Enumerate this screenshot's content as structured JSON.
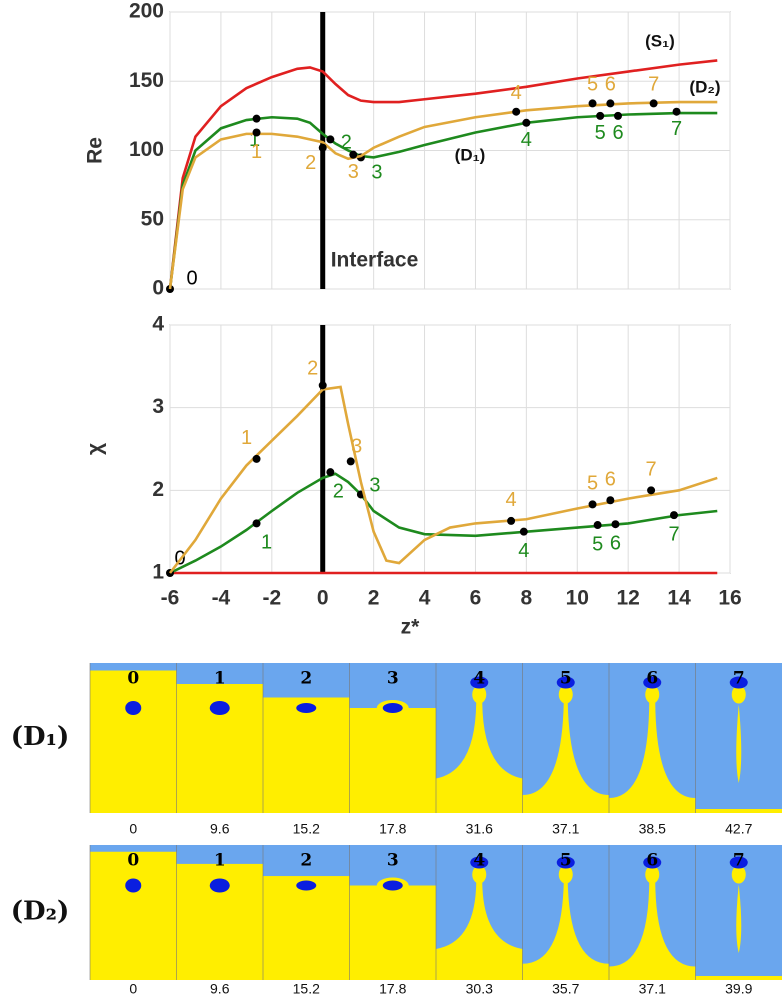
{
  "chart_data": [
    {
      "type": "line",
      "ylabel": "Re",
      "xlim": [
        -6,
        16
      ],
      "ylim": [
        0,
        200
      ],
      "xticks": [
        -6,
        -4,
        -2,
        0,
        2,
        4,
        6,
        8,
        10,
        12,
        14,
        16
      ],
      "yticks": [
        0,
        50,
        100,
        150,
        200
      ],
      "show_xtick_labels": false,
      "grid": true,
      "annotation": {
        "text": "Interface",
        "x": 0
      },
      "series": [
        {
          "name": "(S₁)",
          "color": "#e02020",
          "x": [
            -6,
            -5.5,
            -5,
            -4,
            -3,
            -2,
            -1,
            -0.5,
            0,
            0.5,
            1,
            1.5,
            2,
            3,
            4,
            6,
            8,
            10,
            12,
            14,
            15.5
          ],
          "values": [
            0,
            80,
            110,
            132,
            145,
            153,
            159,
            160,
            157,
            148,
            140,
            136,
            135,
            135,
            137,
            141,
            146,
            152,
            157,
            162,
            165
          ]
        },
        {
          "name": "(D₁)",
          "color": "#1e8a1e",
          "x": [
            -6,
            -5.5,
            -5,
            -4,
            -3,
            -2,
            -1,
            -0.5,
            0,
            0.5,
            1,
            1.5,
            2,
            3,
            4,
            6,
            8,
            10,
            12,
            14,
            15.5
          ],
          "values": [
            0,
            75,
            100,
            116,
            122,
            124,
            123,
            120,
            112,
            105,
            100,
            96,
            95,
            99,
            104,
            113,
            120,
            124,
            126,
            127,
            127
          ],
          "points": {
            "x": [
              -6,
              -2.6,
              0.3,
              1.5,
              8,
              10.9,
              11.6,
              13.9
            ],
            "values": [
              0,
              123,
              108,
              95,
              120,
              125,
              125,
              128
            ],
            "labels": [
              "0",
              "1",
              "2",
              "3",
              "4",
              "5",
              "6",
              "7"
            ]
          }
        },
        {
          "name": "(D₂)",
          "color": "#e0a83a",
          "x": [
            -6,
            -5.5,
            -5,
            -4,
            -3,
            -2,
            -1,
            0,
            0.5,
            1,
            1.5,
            2,
            3,
            4,
            6,
            8,
            10,
            12,
            14,
            15.5
          ],
          "values": [
            0,
            72,
            95,
            108,
            112,
            112,
            110,
            106,
            98,
            94,
            96,
            102,
            110,
            117,
            124,
            129,
            132,
            134,
            135,
            135
          ],
          "points": {
            "x": [
              -2.6,
              0,
              1.2,
              7.6,
              10.6,
              11.3,
              13
            ],
            "values": [
              113,
              102,
              97,
              128,
              134,
              134,
              134
            ],
            "labels": [
              "1",
              "2",
              "3",
              "4",
              "5",
              "6",
              "7"
            ]
          }
        }
      ]
    },
    {
      "type": "line",
      "ylabel": "χ",
      "xlabel": "z*",
      "xlim": [
        -6,
        16
      ],
      "ylim": [
        1,
        4
      ],
      "xticks": [
        -6,
        -4,
        -2,
        0,
        2,
        4,
        6,
        8,
        10,
        12,
        14,
        16
      ],
      "yticks": [
        1,
        2,
        3,
        4
      ],
      "show_xtick_labels": true,
      "grid": true,
      "vline": 0,
      "series": [
        {
          "color": "#e02020",
          "x": [
            -6,
            15.5
          ],
          "values": [
            1,
            1
          ]
        },
        {
          "color": "#1e8a1e",
          "x": [
            -6,
            -5,
            -4,
            -3,
            -2,
            -1,
            0,
            0.5,
            1,
            1.5,
            2,
            3,
            4,
            6,
            8,
            10,
            12,
            14,
            15.5
          ],
          "values": [
            1,
            1.15,
            1.32,
            1.52,
            1.75,
            1.97,
            2.15,
            2.2,
            2.1,
            1.95,
            1.75,
            1.55,
            1.47,
            1.45,
            1.5,
            1.55,
            1.6,
            1.7,
            1.75
          ],
          "points": {
            "x": [
              -6,
              -2.6,
              0.3,
              1.5,
              7.9,
              10.8,
              11.5,
              13.8
            ],
            "values": [
              1,
              1.6,
              2.22,
              1.95,
              1.5,
              1.58,
              1.59,
              1.7
            ],
            "labels": [
              "0",
              "1",
              "2",
              "3",
              "4",
              "5",
              "6",
              "7"
            ]
          }
        },
        {
          "color": "#e0a83a",
          "x": [
            -6,
            -5,
            -4,
            -3,
            -2,
            -1,
            0,
            0.7,
            1,
            1.5,
            2,
            2.5,
            3,
            4,
            5,
            6,
            8,
            10,
            12,
            14,
            15.5
          ],
          "values": [
            1,
            1.4,
            1.9,
            2.3,
            2.6,
            2.9,
            3.22,
            3.25,
            2.8,
            2.1,
            1.5,
            1.15,
            1.12,
            1.4,
            1.55,
            1.6,
            1.65,
            1.78,
            1.9,
            2.0,
            2.15
          ],
          "points": {
            "x": [
              -2.6,
              0,
              1.1,
              7.4,
              10.6,
              11.3,
              12.9
            ],
            "values": [
              2.38,
              3.27,
              2.35,
              1.63,
              1.83,
              1.88,
              2.0
            ],
            "labels": [
              "1",
              "2",
              "3",
              "4",
              "5",
              "6",
              "7"
            ]
          }
        }
      ]
    }
  ],
  "panels": [
    {
      "label": "(D₁)",
      "frames": [
        "0",
        "1",
        "2",
        "3",
        "4",
        "5",
        "6",
        "7"
      ],
      "times": [
        0,
        9.6,
        15.2,
        17.8,
        31.6,
        37.1,
        38.5,
        42.7
      ]
    },
    {
      "label": "(D₂)",
      "frames": [
        "0",
        "1",
        "2",
        "3",
        "4",
        "5",
        "6",
        "7"
      ],
      "times": [
        0,
        9.6,
        15.2,
        17.8,
        30.3,
        35.7,
        37.1,
        39.9
      ]
    }
  ]
}
